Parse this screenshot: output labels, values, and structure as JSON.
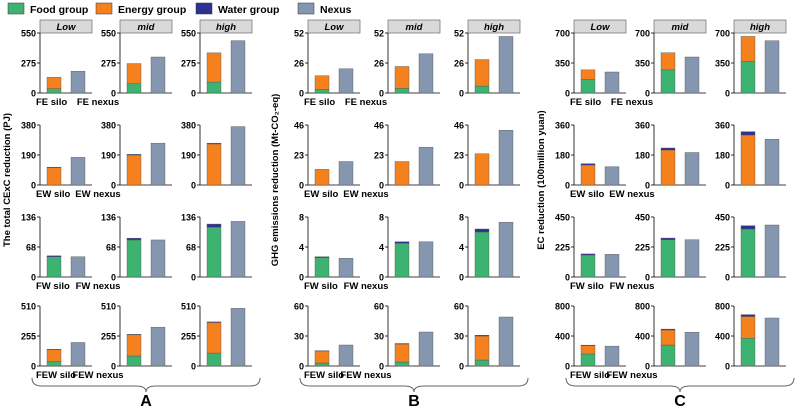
{
  "legend": [
    {
      "label": "Food group",
      "color": "#3cb371"
    },
    {
      "label": "Energy group",
      "color": "#f5801e"
    },
    {
      "label": "Water group",
      "color": "#2e3192"
    },
    {
      "label": "Nexus",
      "color": "#8496b0"
    }
  ],
  "scenarios": [
    "Low",
    "mid",
    "high"
  ],
  "panel_labels": [
    "A",
    "B",
    "C"
  ],
  "chart_data": [
    {
      "type": "bar",
      "stacked": true,
      "group": "A",
      "ylabel": "The total CExC reduction (PJ)",
      "rows": [
        {
          "ticks": [
            "0",
            "275",
            "550"
          ],
          "ymax": 550,
          "xlabels": [
            "FE silo",
            "FE nexus"
          ],
          "low": {
            "silo": [
              40,
              105,
              0
            ],
            "nexus": 200
          },
          "mid": {
            "silo": [
              85,
              185,
              0
            ],
            "nexus": 330
          },
          "high": {
            "silo": [
              100,
              268,
              0
            ],
            "nexus": 480
          }
        },
        {
          "ticks": [
            "0",
            "190",
            "380"
          ],
          "ymax": 380,
          "xlabels": [
            "EW silo",
            "EW nexus"
          ],
          "low": {
            "silo": [
              0,
              110,
              3
            ],
            "nexus": 175
          },
          "mid": {
            "silo": [
              0,
              190,
              4
            ],
            "nexus": 265
          },
          "high": {
            "silo": [
              0,
              260,
              5
            ],
            "nexus": 370
          }
        },
        {
          "ticks": [
            "0",
            "68",
            "136"
          ],
          "ymax": 136,
          "xlabels": [
            "FW silo",
            "FW nexus"
          ],
          "low": {
            "silo": [
              46,
              0,
              2
            ],
            "nexus": 46
          },
          "mid": {
            "silo": [
              84,
              0,
              4
            ],
            "nexus": 84
          },
          "high": {
            "silo": [
              113,
              0,
              7
            ],
            "nexus": 126
          }
        },
        {
          "ticks": [
            "0",
            "255",
            "510"
          ],
          "ymax": 510,
          "xlabels": [
            "FEW silo",
            "FEW nexus"
          ],
          "low": {
            "silo": [
              40,
              100,
              3
            ],
            "nexus": 200
          },
          "mid": {
            "silo": [
              85,
              180,
              4
            ],
            "nexus": 330
          },
          "high": {
            "silo": [
              110,
              260,
              5
            ],
            "nexus": 490
          }
        }
      ]
    },
    {
      "type": "bar",
      "stacked": true,
      "group": "B",
      "ylabel": "GHG emissions reduction (Mt-CO₂-eq)",
      "rows": [
        {
          "ticks": [
            "0",
            "26",
            "52"
          ],
          "ymax": 52,
          "xlabels": [
            "FE silo",
            "FE nexus"
          ],
          "low": {
            "silo": [
              3,
              12,
              0
            ],
            "nexus": 21
          },
          "mid": {
            "silo": [
              4,
              19,
              0
            ],
            "nexus": 34
          },
          "high": {
            "silo": [
              6,
              23,
              0
            ],
            "nexus": 49
          }
        },
        {
          "ticks": [
            "0",
            "23",
            "46"
          ],
          "ymax": 46,
          "xlabels": [
            "EW silo",
            "EW nexus"
          ],
          "low": {
            "silo": [
              0,
              12,
              0
            ],
            "nexus": 18
          },
          "mid": {
            "silo": [
              0,
              18,
              0
            ],
            "nexus": 29
          },
          "high": {
            "silo": [
              0,
              24,
              0
            ],
            "nexus": 42
          }
        },
        {
          "ticks": [
            "0",
            "4",
            "8"
          ],
          "ymax": 8,
          "xlabels": [
            "FW silo",
            "FW nexus"
          ],
          "low": {
            "silo": [
              2.6,
              0,
              0.1
            ],
            "nexus": 2.5
          },
          "mid": {
            "silo": [
              4.5,
              0,
              0.2
            ],
            "nexus": 4.7
          },
          "high": {
            "silo": [
              6.0,
              0,
              0.4
            ],
            "nexus": 7.3
          }
        },
        {
          "ticks": [
            "0",
            "30",
            "60"
          ],
          "ymax": 60,
          "xlabels": [
            "FEW silo",
            "FEW nexus"
          ],
          "low": {
            "silo": [
              3,
              12,
              0.3
            ],
            "nexus": 21
          },
          "mid": {
            "silo": [
              4,
              18,
              0.5
            ],
            "nexus": 34
          },
          "high": {
            "silo": [
              6,
              24,
              0.8
            ],
            "nexus": 49
          }
        }
      ]
    },
    {
      "type": "bar",
      "stacked": true,
      "group": "C",
      "ylabel": "EC reduction (100million yuan)",
      "rows": [
        {
          "ticks": [
            "0",
            "350",
            "700"
          ],
          "ymax": 700,
          "xlabels": [
            "FE silo",
            "FE nexus"
          ],
          "low": {
            "silo": [
              160,
              110,
              0
            ],
            "nexus": 245
          },
          "mid": {
            "silo": [
              270,
              200,
              0
            ],
            "nexus": 420
          },
          "high": {
            "silo": [
              370,
              290,
              0
            ],
            "nexus": 610
          }
        },
        {
          "ticks": [
            "0",
            "180",
            "360"
          ],
          "ymax": 360,
          "xlabels": [
            "EW silo",
            "EW nexus"
          ],
          "low": {
            "silo": [
              0,
              120,
              8
            ],
            "nexus": 110
          },
          "mid": {
            "silo": [
              0,
              210,
              12
            ],
            "nexus": 195
          },
          "high": {
            "silo": [
              0,
              300,
              20
            ],
            "nexus": 275
          }
        },
        {
          "ticks": [
            "0",
            "225",
            "450"
          ],
          "ymax": 450,
          "xlabels": [
            "FW silo",
            "FW nexus"
          ],
          "low": {
            "silo": [
              165,
              0,
              8
            ],
            "nexus": 170
          },
          "mid": {
            "silo": [
              280,
              0,
              12
            ],
            "nexus": 280
          },
          "high": {
            "silo": [
              360,
              0,
              25
            ],
            "nexus": 390
          }
        },
        {
          "ticks": [
            "0",
            "400",
            "800"
          ],
          "ymax": 800,
          "xlabels": [
            "FEW silo",
            "FEW nexus"
          ],
          "low": {
            "silo": [
              160,
              110,
              8
            ],
            "nexus": 265
          },
          "mid": {
            "silo": [
              280,
              200,
              12
            ],
            "nexus": 450
          },
          "high": {
            "silo": [
              370,
              290,
              25
            ],
            "nexus": 640
          }
        }
      ]
    }
  ]
}
